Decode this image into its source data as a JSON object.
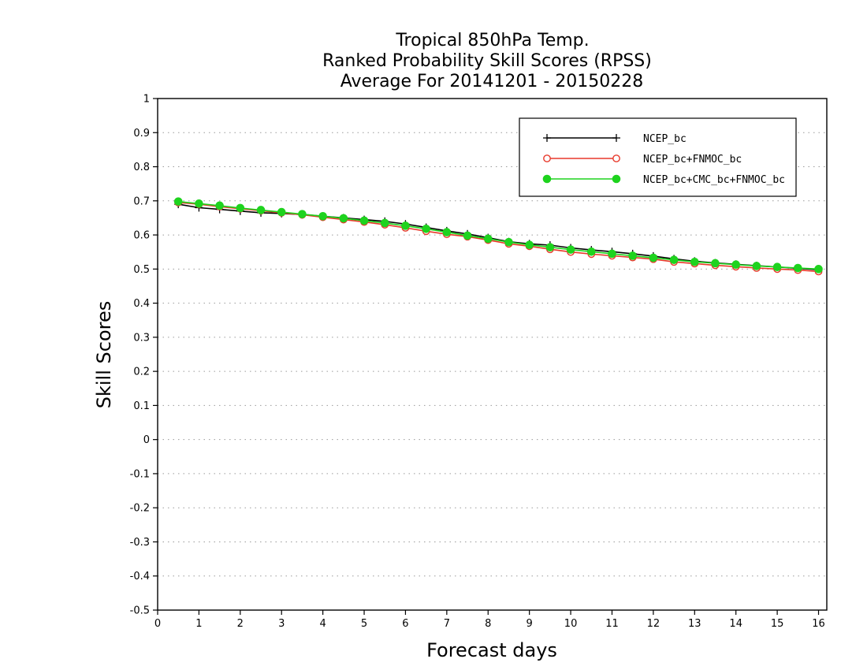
{
  "chart_data": {
    "type": "line",
    "title_lines": [
      "Tropical 850hPa Temp.",
      "Ranked Probability Skill Scores (RPSS)",
      "Average For 20141201 - 20150228"
    ],
    "xlabel": "Forecast days",
    "ylabel": "Skill Scores",
    "xlim": [
      0,
      16.2
    ],
    "ylim": [
      -0.5,
      1
    ],
    "x_ticks": [
      0,
      1,
      2,
      3,
      4,
      5,
      6,
      7,
      8,
      9,
      10,
      11,
      12,
      13,
      14,
      15,
      16
    ],
    "y_ticks": [
      -0.5,
      -0.4,
      -0.3,
      -0.2,
      -0.1,
      0,
      0.1,
      0.2,
      0.3,
      0.4,
      0.5,
      0.6,
      0.7,
      0.8,
      0.9,
      1
    ],
    "y_tick_labels": [
      "-0.5",
      "-0.4",
      "-0.3",
      "-0.2",
      "-0.1",
      "0",
      "0.1",
      "0.2",
      "0.3",
      "0.4",
      "0.5",
      "0.6",
      "0.7",
      "0.8",
      "0.9",
      "1"
    ],
    "grid": "horizontal dotted",
    "legend_position": "top-right",
    "x": [
      0.5,
      1,
      1.5,
      2,
      2.5,
      3,
      3.5,
      4,
      4.5,
      5,
      5.5,
      6,
      6.5,
      7,
      7.5,
      8,
      8.5,
      9,
      9.5,
      10,
      10.5,
      11,
      11.5,
      12,
      12.5,
      13,
      13.5,
      14,
      14.5,
      15,
      15.5,
      16
    ],
    "series": [
      {
        "name": "NCEP_bc",
        "color": "#000000",
        "marker": "plus",
        "values": [
          0.69,
          0.68,
          0.675,
          0.67,
          0.665,
          0.663,
          0.66,
          0.655,
          0.65,
          0.645,
          0.64,
          0.632,
          0.622,
          0.612,
          0.603,
          0.592,
          0.58,
          0.574,
          0.57,
          0.562,
          0.556,
          0.551,
          0.545,
          0.538,
          0.53,
          0.523,
          0.518,
          0.514,
          0.51,
          0.506,
          0.502,
          0.498
        ]
      },
      {
        "name": "NCEP_bc+FNMOC_bc",
        "color": "#e8392b",
        "marker": "open-circle",
        "values": [
          0.695,
          0.69,
          0.683,
          0.677,
          0.671,
          0.665,
          0.659,
          0.652,
          0.645,
          0.638,
          0.63,
          0.621,
          0.611,
          0.602,
          0.595,
          0.585,
          0.574,
          0.567,
          0.558,
          0.55,
          0.544,
          0.539,
          0.534,
          0.529,
          0.521,
          0.516,
          0.511,
          0.507,
          0.503,
          0.5,
          0.497,
          0.493
        ]
      },
      {
        "name": "NCEP_bc+CMC_bc+FNMOC_bc",
        "color": "#1ed31e",
        "marker": "filled-circle",
        "values": [
          0.698,
          0.692,
          0.686,
          0.679,
          0.673,
          0.667,
          0.661,
          0.655,
          0.649,
          0.642,
          0.635,
          0.627,
          0.618,
          0.608,
          0.598,
          0.589,
          0.579,
          0.571,
          0.564,
          0.557,
          0.551,
          0.545,
          0.539,
          0.533,
          0.527,
          0.521,
          0.517,
          0.513,
          0.509,
          0.506,
          0.503,
          0.5
        ]
      }
    ]
  }
}
